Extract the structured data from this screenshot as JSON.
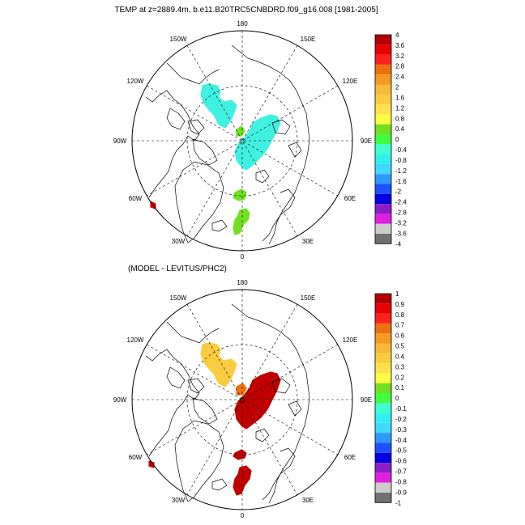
{
  "top_panel": {
    "title": "TEMP at z=2889.4m, b.e11.B20TRC5CNBDRD.f09_g16.008 [1981-2005]",
    "lon_labels": [
      "180",
      "150E",
      "120E",
      "90E",
      "60E",
      "30E",
      "0",
      "30W",
      "60W",
      "90W",
      "120W",
      "150W"
    ],
    "colorbar": {
      "labels": [
        "4",
        "3.6",
        "3.2",
        "2.8",
        "2.4",
        "2",
        "1.6",
        "1.2",
        "0.8",
        "0.4",
        "0",
        "-0.4",
        "-0.8",
        "-1.2",
        "-1.6",
        "-2",
        "-2.4",
        "-2.8",
        "-3.2",
        "-3.6",
        "-4"
      ],
      "colors": [
        "#b40000",
        "#e60000",
        "#ff2020",
        "#ee7010",
        "#f59a20",
        "#f8b838",
        "#fccc40",
        "#ffe24a",
        "#ffff40",
        "#70e020",
        "#40ff40",
        "#40ffd0",
        "#30f0f0",
        "#40d8ff",
        "#3098ff",
        "#1e50ff",
        "#0000e0",
        "#8c1ec8",
        "#e020e0",
        "#cccccc",
        "#707070"
      ]
    }
  },
  "bottom_panel": {
    "title": "(MODEL - LEVITUS/PHC2)",
    "lon_labels": [
      "180",
      "150E",
      "120E",
      "90E",
      "60E",
      "30E",
      "0",
      "30W",
      "60W",
      "90W",
      "120W",
      "150W"
    ],
    "colorbar": {
      "labels": [
        "1",
        "0.9",
        "0.8",
        "0.7",
        "0.6",
        "0.5",
        "0.4",
        "0.3",
        "0.2",
        "0.1",
        "0",
        "-0.1",
        "-0.2",
        "-0.3",
        "-0.4",
        "-0.5",
        "-0.6",
        "-0.7",
        "-0.8",
        "-0.9",
        "-1"
      ],
      "colors": [
        "#b40000",
        "#e60000",
        "#ff2020",
        "#ee7010",
        "#f59a20",
        "#f8b838",
        "#fccc40",
        "#ffe24a",
        "#ffff40",
        "#70e020",
        "#40ff40",
        "#40ffd0",
        "#30f0f0",
        "#40d8ff",
        "#3098ff",
        "#1e50ff",
        "#0000e0",
        "#8c1ec8",
        "#e020e0",
        "#cccccc",
        "#707070"
      ]
    }
  },
  "fills": {
    "top_cyan": "#40f0e0",
    "top_green": "#70e020",
    "top_red": "#e60000",
    "bottom_yellow": "#fccc40",
    "bottom_orange": "#ee7010",
    "bottom_darkred": "#c00000"
  }
}
